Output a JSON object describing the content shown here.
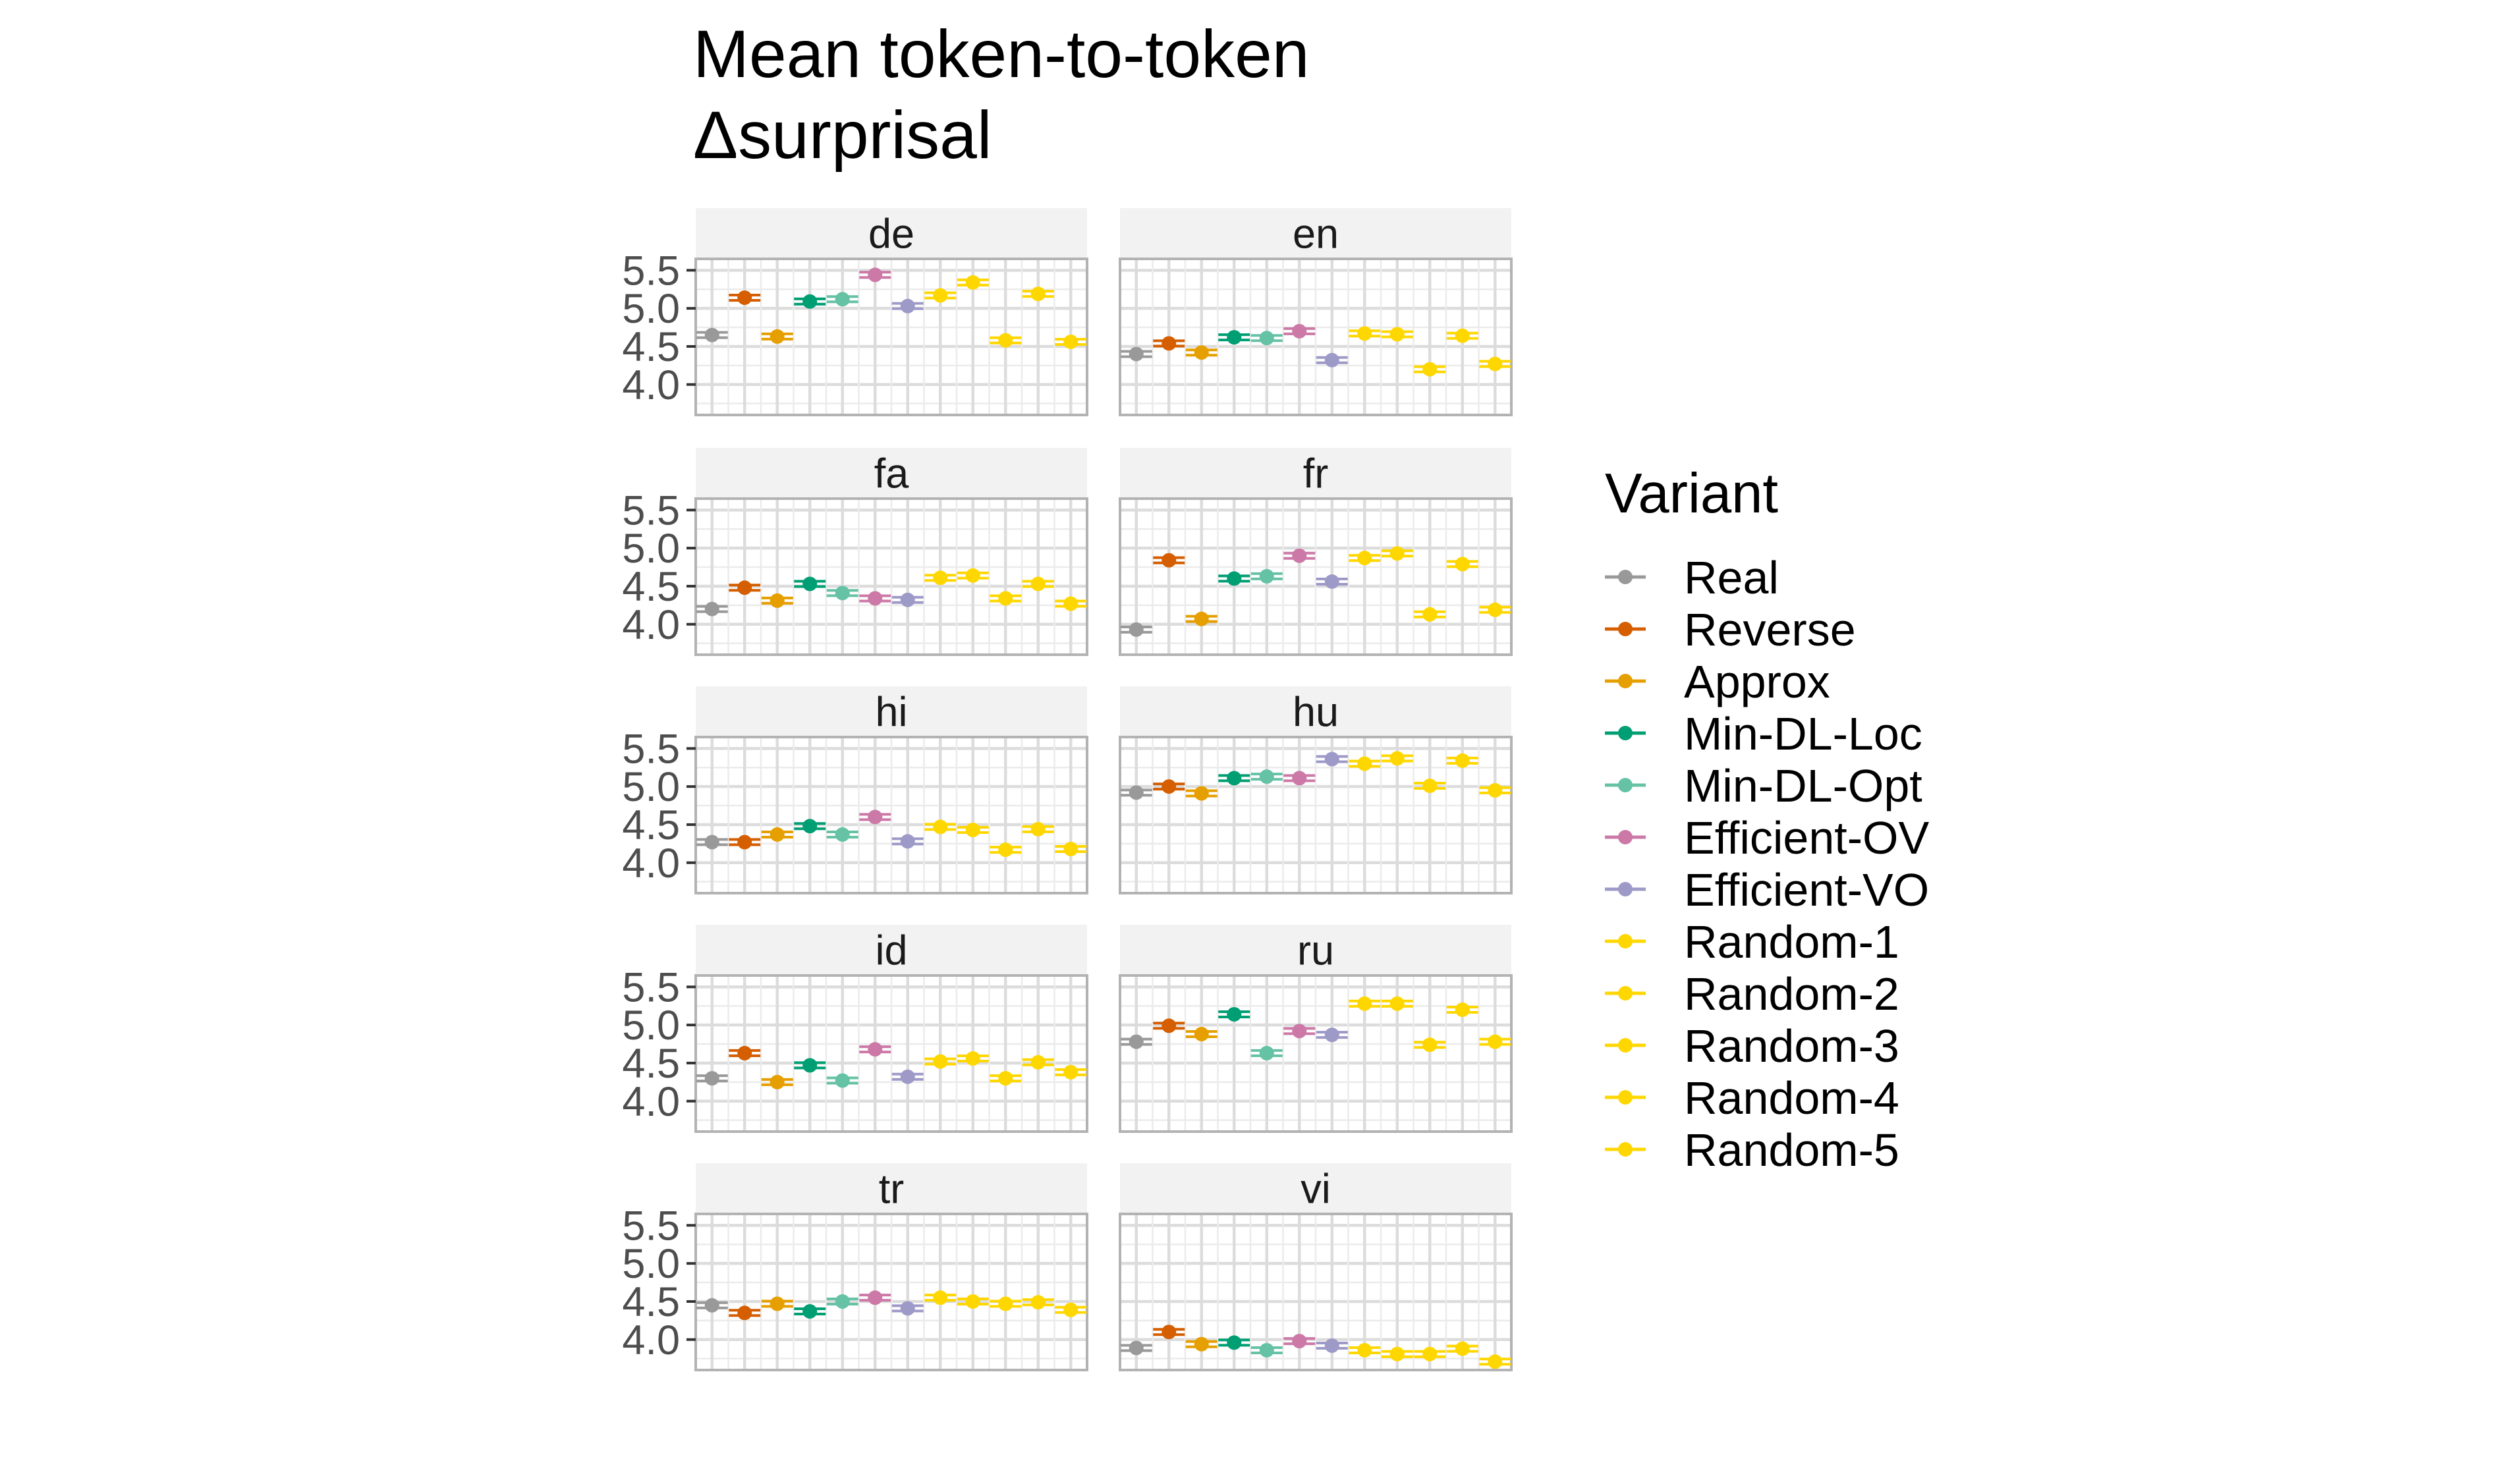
{
  "chart_data": {
    "type": "scatter",
    "title_lines": [
      "Mean token-to-token",
      "Δsurprisal"
    ],
    "xlabel": "",
    "ylabel": "",
    "ylim": [
      3.6,
      5.65
    ],
    "y_ticks": [
      4.0,
      4.5,
      5.0,
      5.5
    ],
    "y_tick_labels": [
      "4.0",
      "4.5",
      "5.0",
      "5.5"
    ],
    "grid": true,
    "legend": {
      "title": "Variant",
      "position": "right",
      "entries": [
        "Real",
        "Reverse",
        "Approx",
        "Min-DL-Loc",
        "Min-DL-Opt",
        "Efficient-OV",
        "Efficient-VO",
        "Random-1",
        "Random-2",
        "Random-3",
        "Random-4",
        "Random-5"
      ]
    },
    "variant_colors": [
      "#999999",
      "#D55E00",
      "#E69F00",
      "#009E73",
      "#66C2A5",
      "#CC79A7",
      "#9E9AC8",
      "#FFD700",
      "#FFD700",
      "#FFD700",
      "#FFD700",
      "#FFD700"
    ],
    "panels": [
      {
        "name": "de",
        "values": [
          4.65,
          5.14,
          4.63,
          5.09,
          5.12,
          5.44,
          5.03,
          5.17,
          5.34,
          4.58,
          5.19,
          4.56
        ]
      },
      {
        "name": "en",
        "values": [
          4.4,
          4.54,
          4.42,
          4.62,
          4.61,
          4.7,
          4.32,
          4.67,
          4.66,
          4.2,
          4.64,
          4.27
        ]
      },
      {
        "name": "fa",
        "values": [
          4.2,
          4.48,
          4.31,
          4.53,
          4.41,
          4.34,
          4.32,
          4.61,
          4.64,
          4.34,
          4.53,
          4.27
        ]
      },
      {
        "name": "fr",
        "values": [
          3.93,
          4.84,
          4.07,
          4.6,
          4.63,
          4.9,
          4.56,
          4.87,
          4.93,
          4.13,
          4.79,
          4.19
        ]
      },
      {
        "name": "hi",
        "values": [
          4.27,
          4.27,
          4.37,
          4.48,
          4.37,
          4.6,
          4.28,
          4.47,
          4.43,
          4.17,
          4.44,
          4.18
        ]
      },
      {
        "name": "hu",
        "values": [
          4.92,
          5.0,
          4.91,
          5.11,
          5.13,
          5.11,
          5.36,
          5.3,
          5.37,
          5.01,
          5.34,
          4.95
        ]
      },
      {
        "name": "id",
        "values": [
          4.3,
          4.63,
          4.25,
          4.47,
          4.27,
          4.68,
          4.32,
          4.52,
          4.56,
          4.3,
          4.51,
          4.38
        ]
      },
      {
        "name": "ru",
        "values": [
          4.78,
          4.99,
          4.88,
          5.14,
          4.63,
          4.92,
          4.87,
          5.28,
          5.28,
          4.74,
          5.2,
          4.78
        ]
      },
      {
        "name": "tr",
        "values": [
          4.45,
          4.35,
          4.47,
          4.37,
          4.5,
          4.55,
          4.41,
          4.55,
          4.5,
          4.47,
          4.49,
          4.39
        ]
      },
      {
        "name": "vi",
        "values": [
          3.89,
          4.1,
          3.94,
          3.96,
          3.86,
          3.98,
          3.92,
          3.86,
          3.81,
          3.81,
          3.88,
          3.71
        ]
      }
    ]
  }
}
